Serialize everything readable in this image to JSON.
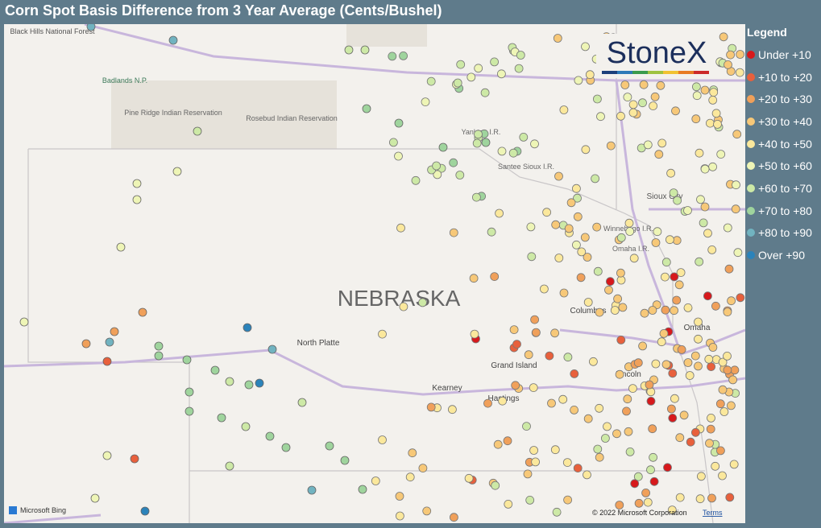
{
  "title": "Corn Spot Basis Difference from 3 Year Average (Cents/Bushel)",
  "legend": {
    "title": "Legend",
    "items": [
      {
        "label": "Under +10",
        "color": "#d7191c"
      },
      {
        "label": "+10 to +20",
        "color": "#e8603c"
      },
      {
        "label": "+20 to +30",
        "color": "#f0a05a"
      },
      {
        "label": "+30 to +40",
        "color": "#f7c878"
      },
      {
        "label": "+40 to +50",
        "color": "#fbe89c"
      },
      {
        "label": "+50 to +60",
        "color": "#eef5b6"
      },
      {
        "label": "+60 to +70",
        "color": "#cde9a6"
      },
      {
        "label": "+70 to +80",
        "color": "#9fd49d"
      },
      {
        "label": "+80 to +90",
        "color": "#71b3c0"
      },
      {
        "label": "Over +90",
        "color": "#2b83ba"
      }
    ]
  },
  "logo": "StoneX",
  "map_labels": [
    "Black Hills National Forest",
    "Badlands N.P.",
    "Pine Ridge Indian Reservation",
    "Rosebud Indian Reservation",
    "Yankton I.R.",
    "Santee Sioux I.R.",
    "Sioux City",
    "Winnebago I.R.",
    "Omaha I.R.",
    "NEBRASKA",
    "Columbus",
    "Omaha",
    "North Platte",
    "Grand Island",
    "Kearney",
    "Hastings",
    "Lincoln"
  ],
  "attribution": {
    "provider": "Microsoft Bing",
    "copyright": "© 2022 Microsoft Corporation",
    "terms": "Terms"
  }
}
